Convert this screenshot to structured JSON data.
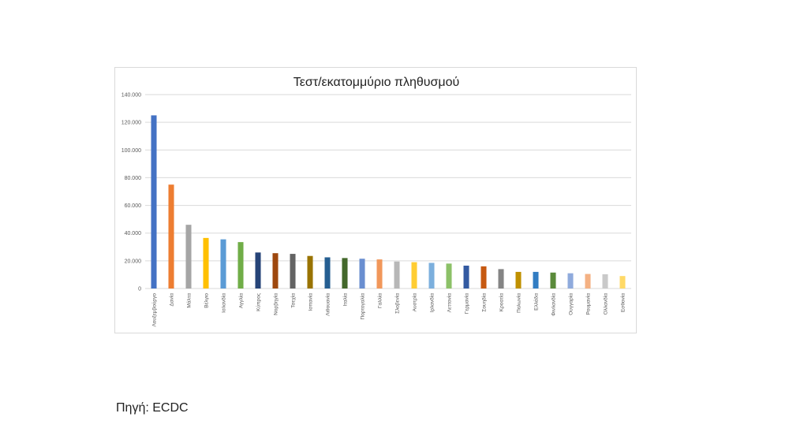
{
  "source": "Πηγή: ECDC",
  "chart_data": {
    "type": "bar",
    "title": "Τεστ/εκατομμύριο πληθυσμού",
    "xlabel": "",
    "ylabel": "",
    "ylim": [
      0,
      140000
    ],
    "y_ticks": [
      {
        "value": 0,
        "label": "0"
      },
      {
        "value": 20000,
        "label": "20.000"
      },
      {
        "value": 40000,
        "label": "40.000"
      },
      {
        "value": 60000,
        "label": "60.000"
      },
      {
        "value": 80000,
        "label": "80.000"
      },
      {
        "value": 100000,
        "label": "100.000"
      },
      {
        "value": 120000,
        "label": "120.000"
      },
      {
        "value": 140000,
        "label": "140.000"
      }
    ],
    "grid": true,
    "legend": "none",
    "categories": [
      "Λουξεμβούργο",
      "Δανία",
      "Μάλτα",
      "Βέλγιο",
      "Ισλανδία",
      "Αγγλία",
      "Κύπρος",
      "Νορβηγία",
      "Τσεχία",
      "Ισπανία",
      "Λιθουανία",
      "Ιταλία",
      "Πορτογαλία",
      "Γαλλία",
      "Σλοβενία",
      "Αυστρία",
      "Ιρλανδία",
      "Λεττονία",
      "Γερμανία",
      "Σουηδία",
      "Κροατία",
      "Πολωνία",
      "Ελλάδα",
      "Φινλανδία",
      "Ουγγαρία",
      "Ρουμανία",
      "Ολλανδία",
      "Εσθονία"
    ],
    "values": [
      125000,
      75000,
      46000,
      36500,
      35500,
      33500,
      26000,
      25500,
      25000,
      23500,
      22500,
      22000,
      21500,
      21000,
      19500,
      19000,
      18500,
      18000,
      16500,
      16000,
      14000,
      12000,
      12000,
      11500,
      11000,
      10500,
      10300,
      9000
    ],
    "colors": [
      "#4472c4",
      "#ed7d31",
      "#a5a5a5",
      "#ffc000",
      "#5b9bd5",
      "#70ad47",
      "#264478",
      "#9e480e",
      "#636363",
      "#997300",
      "#255e91",
      "#43682b",
      "#698ed0",
      "#f1975a",
      "#b7b7b7",
      "#ffcd33",
      "#7cafdd",
      "#8cc168",
      "#335aa1",
      "#c65911",
      "#848484",
      "#bf9000",
      "#327dc2",
      "#5a8a3a",
      "#8faadc",
      "#f4b183",
      "#c9c9c9",
      "#ffd966"
    ]
  }
}
